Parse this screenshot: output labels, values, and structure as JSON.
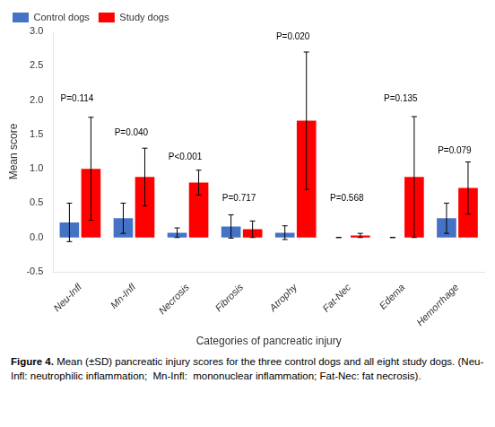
{
  "chart_data": {
    "type": "bar",
    "categories": [
      "Neu-Infl",
      "Mn-Infl",
      "Necrosis",
      "Fibrosis",
      "Atrophy",
      "Fat-Nec",
      "Edema",
      "Hemorrhage"
    ],
    "series": [
      {
        "name": "Control dogs",
        "color": "#4472C4",
        "values": [
          0.22,
          0.28,
          0.07,
          0.16,
          0.07,
          0.0,
          0.0,
          0.28
        ],
        "errors": [
          0.28,
          0.22,
          0.07,
          0.17,
          0.1,
          0.0,
          0.0,
          0.22
        ]
      },
      {
        "name": "Study dogs",
        "color": "#FF0000",
        "values": [
          1.0,
          0.88,
          0.8,
          0.12,
          1.7,
          0.03,
          0.88,
          0.72
        ],
        "errors": [
          0.75,
          0.42,
          0.18,
          0.12,
          1.0,
          0.03,
          0.88,
          0.38
        ]
      }
    ],
    "xlabel": "Categories of pancreatic injury",
    "ylabel": "Mean score",
    "ylim": [
      -0.5,
      3.0
    ],
    "yticks": [
      -0.5,
      {
        "value": 0.0,
        "label": "0.0"
      },
      0.5,
      {
        "value": 1.0,
        "label": "1.0"
      },
      1.5,
      {
        "value": 2.0,
        "label": "2.0"
      },
      2.5,
      {
        "value": 3.0,
        "label": "3.0"
      }
    ],
    "grid": false,
    "legend": "upper left",
    "annotations": [
      {
        "text": "P=0.114",
        "category": "Neu-Infl",
        "y": 1.95
      },
      {
        "text": "P=0.040",
        "category": "Mn-Infl",
        "y": 1.45
      },
      {
        "text": "P<0.001",
        "category": "Necrosis",
        "y": 1.1
      },
      {
        "text": "P=0.717",
        "category": "Fibrosis",
        "y": 0.5
      },
      {
        "text": "P=0.020",
        "category": "Atrophy",
        "y": 2.85
      },
      {
        "text": "P=0.568",
        "category": "Fat-Nec",
        "y": 0.5
      },
      {
        "text": "P=0.135",
        "category": "Edema",
        "y": 1.95
      },
      {
        "text": "P=0.079",
        "category": "Hemorrhage",
        "y": 1.2
      }
    ],
    "caption_label": "Figure 4.",
    "caption": "Mean (±SD) pancreatic injury scores for the three control dogs and all eight study dogs. (Neu-Infl: neutrophilic inflammation;  Mn-Infl:  mononuclear inflammation; Fat-Nec: fat necrosis)."
  }
}
